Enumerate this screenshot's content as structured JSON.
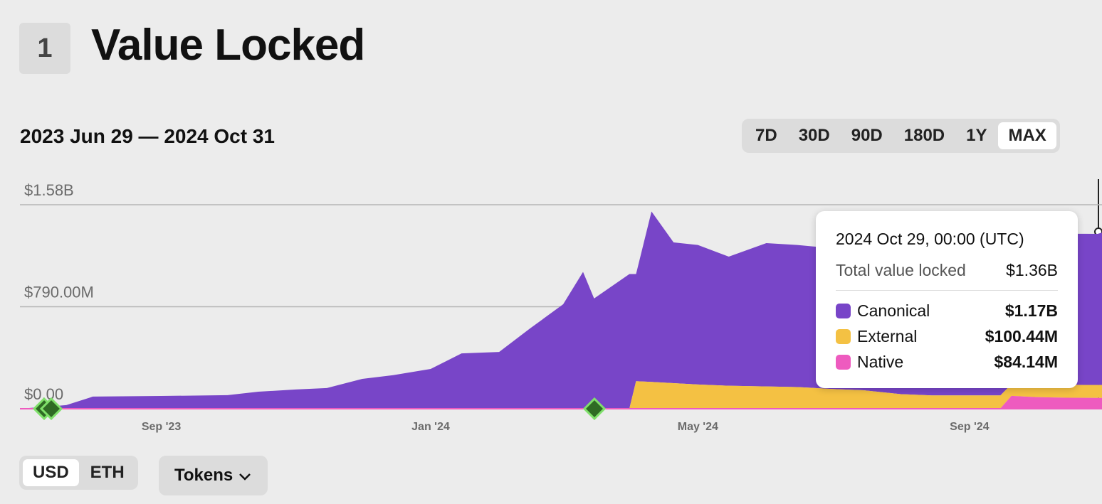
{
  "header": {
    "number": "1",
    "title": "Value Locked"
  },
  "range_label": "2023 Jun 29 — 2024 Oct 31",
  "time_buttons": [
    "7D",
    "30D",
    "90D",
    "180D",
    "1Y",
    "MAX"
  ],
  "selected_time": "MAX",
  "currency_buttons": [
    "USD",
    "ETH"
  ],
  "selected_currency": "USD",
  "tokens_button": "Tokens",
  "chart_data": {
    "type": "area",
    "stacked": true,
    "x": [
      "2023-06-29",
      "2023-07-20",
      "2023-08-01",
      "2023-09-01",
      "2023-10-01",
      "2023-10-15",
      "2023-11-01",
      "2023-11-15",
      "2023-12-01",
      "2023-12-15",
      "2024-01-01",
      "2024-01-15",
      "2024-02-01",
      "2024-02-15",
      "2024-03-01",
      "2024-03-10",
      "2024-03-15",
      "2024-03-31",
      "2024-04-03",
      "2024-04-10",
      "2024-04-20",
      "2024-05-01",
      "2024-05-15",
      "2024-06-01",
      "2024-06-15",
      "2024-07-01",
      "2024-07-15",
      "2024-08-01",
      "2024-08-15",
      "2024-09-01",
      "2024-09-15",
      "2024-09-20",
      "2024-10-01",
      "2024-10-15",
      "2024-10-29",
      "2024-10-31"
    ],
    "xlim": [
      "2023-06-29",
      "2024-10-31"
    ],
    "xticks": [
      {
        "value": "2023-09-01",
        "label": "Sep '23"
      },
      {
        "value": "2024-01-01",
        "label": "Jan '24"
      },
      {
        "value": "2024-05-01",
        "label": "May '24"
      },
      {
        "value": "2024-09-01",
        "label": "Sep '24"
      }
    ],
    "ylim": [
      0,
      1580000000
    ],
    "yticks": [
      {
        "value": 0,
        "label": "$0.00"
      },
      {
        "value": 790000000,
        "label": "$790.00M"
      },
      {
        "value": 1580000000,
        "label": "$1.58B"
      }
    ],
    "grid": true,
    "series": [
      {
        "name": "Canonical",
        "color": "#7845c8",
        "values": [
          0,
          27000000,
          93000000,
          98000000,
          104000000,
          131000000,
          148000000,
          159000000,
          230000000,
          258000000,
          306000000,
          427000000,
          438000000,
          620000000,
          807000000,
          1058000000,
          851000000,
          1040000000,
          830000000,
          1320000000,
          1090000000,
          1080000000,
          1000000000,
          1110000000,
          1100000000,
          1090000000,
          1080000000,
          1100000000,
          1120000000,
          1140000000,
          1150000000,
          1150000000,
          1160000000,
          1170000000,
          1170000000,
          1180000000
        ]
      },
      {
        "name": "External",
        "color": "#f4c143",
        "values": [
          0,
          0,
          0,
          0,
          0,
          0,
          0,
          0,
          0,
          0,
          0,
          0,
          0,
          0,
          0,
          0,
          0,
          0,
          210000000,
          205000000,
          195000000,
          185000000,
          175000000,
          170000000,
          165000000,
          150000000,
          140000000,
          110000000,
          100000000,
          100000000,
          100000000,
          90000000,
          95000000,
          100000000,
          100440000,
          100000000
        ]
      },
      {
        "name": "Native",
        "color": "#ee5bbf",
        "values": [
          0,
          1000000,
          1000000,
          1000000,
          1000000,
          1000000,
          1000000,
          1000000,
          1000000,
          2000000,
          2000000,
          2000000,
          2000000,
          2000000,
          2000000,
          2000000,
          3000000,
          3000000,
          3000000,
          3000000,
          3000000,
          3000000,
          3000000,
          3000000,
          3000000,
          3000000,
          3000000,
          3000000,
          3000000,
          3000000,
          3000000,
          100000000,
          90000000,
          85000000,
          84140000,
          84000000
        ]
      }
    ]
  },
  "tooltip": {
    "date": "2024 Oct 29, 00:00 (UTC)",
    "total_label": "Total value locked",
    "total_value": "$1.36B",
    "values": [
      "$1.17B",
      "$100.44M",
      "$84.14M"
    ]
  }
}
